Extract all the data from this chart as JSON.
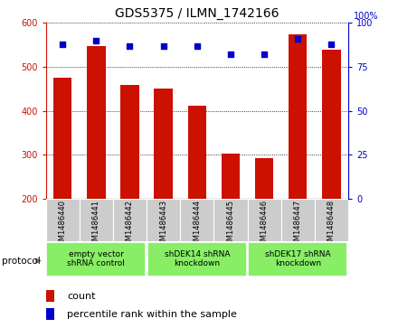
{
  "title": "GDS5375 / ILMN_1742166",
  "samples": [
    "GSM1486440",
    "GSM1486441",
    "GSM1486442",
    "GSM1486443",
    "GSM1486444",
    "GSM1486445",
    "GSM1486446",
    "GSM1486447",
    "GSM1486448"
  ],
  "counts": [
    475,
    548,
    459,
    450,
    412,
    302,
    291,
    575,
    540
  ],
  "percentiles": [
    88,
    90,
    87,
    87,
    87,
    82,
    82,
    91,
    88
  ],
  "ylim_left": [
    200,
    600
  ],
  "ylim_right": [
    0,
    100
  ],
  "yticks_left": [
    200,
    300,
    400,
    500,
    600
  ],
  "yticks_right": [
    0,
    25,
    50,
    75,
    100
  ],
  "bar_color": "#cc1100",
  "dot_color": "#0000cc",
  "group_bg_color": "#cccccc",
  "green_color": "#88ee66",
  "group_info": [
    {
      "label": "empty vector\nshRNA control",
      "start": 0,
      "end": 2
    },
    {
      "label": "shDEK14 shRNA\nknockdown",
      "start": 3,
      "end": 5
    },
    {
      "label": "shDEK17 shRNA\nknockdown",
      "start": 6,
      "end": 8
    }
  ],
  "legend_count_label": "count",
  "legend_percentile_label": "percentile rank within the sample",
  "protocol_label": "protocol",
  "bar_width": 0.55
}
